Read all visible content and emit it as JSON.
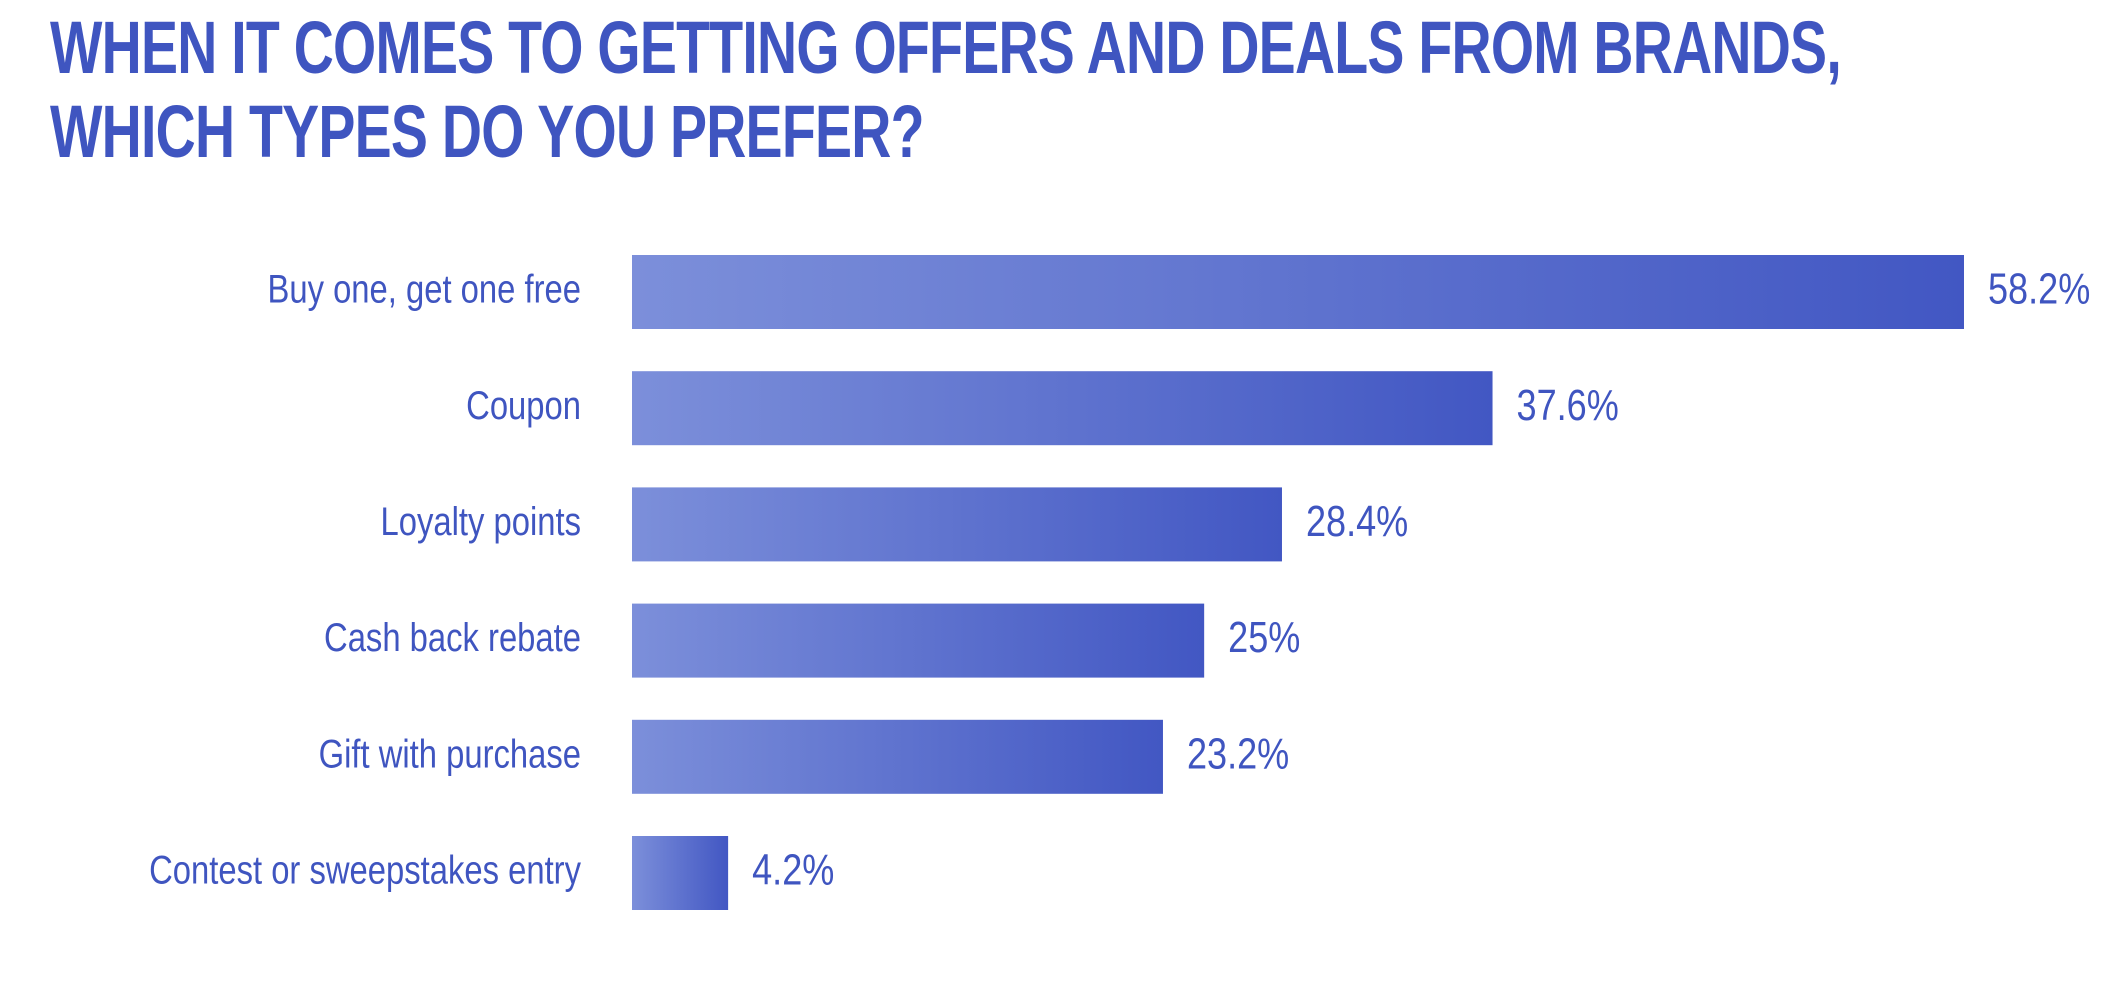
{
  "chart_data": {
    "type": "hbar",
    "title": "WHEN IT COMES TO GETTING OFFERS AND DEALS FROM BRANDS, WHICH TYPES DO YOU PREFER?",
    "categories": [
      "Buy one, get one free",
      "Coupon",
      "Loyalty points",
      "Cash back rebate",
      "Gift with purchase",
      "Contest or sweepstakes entry"
    ],
    "values": [
      58.2,
      37.6,
      28.4,
      25,
      23.2,
      4.2
    ],
    "value_labels": [
      "58.2%",
      "37.6%",
      "28.4%",
      "25%",
      "23.2%",
      "4.2%"
    ],
    "color": "#4257c3"
  }
}
